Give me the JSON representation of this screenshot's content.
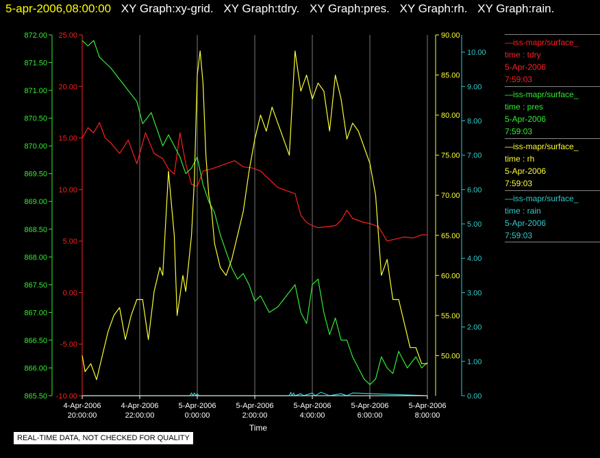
{
  "header": {
    "datetime": "5-apr-2006,08:00:00",
    "graphs": [
      "XY Graph:xy-grid.",
      "XY Graph:tdry.",
      "XY Graph:pres.",
      "XY Graph:rh.",
      "XY Graph:rain."
    ]
  },
  "legend": [
    {
      "source": "—iss-mapr/surface_",
      "field": "time : tdry",
      "date": "5-Apr-2006",
      "time": "7:59:03",
      "color": "#ff2020"
    },
    {
      "source": "—iss-mapr/surface_",
      "field": "time : pres",
      "date": "5-Apr-2006",
      "time": "7:59:03",
      "color": "#33ee33"
    },
    {
      "source": "—iss-mapr/surface_",
      "field": "time : rh",
      "date": "5-Apr-2006",
      "time": "7:59:03",
      "color": "#ffff33"
    },
    {
      "source": "—iss-mapr/surface_",
      "field": "time : rain",
      "date": "5-Apr-2006",
      "time": "7:59:03",
      "color": "#33cccc"
    }
  ],
  "quality_note": "REAL-TIME DATA, NOT CHECKED FOR QUALITY",
  "chart_data": {
    "type": "line",
    "xlabel": "Time",
    "x_ticks": [
      {
        "date": "4-Apr-2006",
        "time": "20:00:00",
        "h": 0
      },
      {
        "date": "4-Apr-2006",
        "time": "22:00:00",
        "h": 2
      },
      {
        "date": "5-Apr-2006",
        "time": "0:00:00",
        "h": 4
      },
      {
        "date": "5-Apr-2006",
        "time": "2:00:00",
        "h": 6
      },
      {
        "date": "5-Apr-2006",
        "time": "4:00:00",
        "h": 8
      },
      {
        "date": "5-Apr-2006",
        "time": "6:00:00",
        "h": 10
      },
      {
        "date": "5-Apr-2006",
        "time": "8:00:00",
        "h": 12
      }
    ],
    "xlim": [
      0,
      12
    ],
    "grid": "vertical lines at x ticks",
    "axes": {
      "pres": {
        "color": "#33ee33",
        "side": "left",
        "range": [
          865.5,
          872.0
        ],
        "ticks": [
          "865.50",
          "866.00",
          "866.50",
          "867.00",
          "867.50",
          "868.00",
          "868.50",
          "869.00",
          "869.50",
          "870.00",
          "870.50",
          "871.00",
          "871.50",
          "872.00"
        ]
      },
      "tdry": {
        "color": "#ff2020",
        "side": "left",
        "range": [
          -10,
          25
        ],
        "ticks": [
          "-10.00",
          "-5.00",
          "0.00",
          "5.00",
          "10.00",
          "15.00",
          "20.00",
          "25.00"
        ]
      },
      "rh": {
        "color": "#ffff33",
        "side": "right",
        "range": [
          45,
          90
        ],
        "ticks": [
          "50.00",
          "55.00",
          "60.00",
          "65.00",
          "70.00",
          "75.00",
          "80.00",
          "85.00",
          "90.00"
        ]
      },
      "rain": {
        "color": "#33cccc",
        "side": "right",
        "range": [
          0,
          10.5
        ],
        "ticks": [
          "0.00",
          "1.00",
          "2.00",
          "3.00",
          "4.00",
          "5.00",
          "6.00",
          "7.00",
          "8.00",
          "9.00",
          "10.00"
        ]
      }
    },
    "series": [
      {
        "name": "time : tdry",
        "axis": "tdry",
        "color": "#ff2020",
        "x": [
          0,
          0.2,
          0.4,
          0.6,
          0.8,
          1.0,
          1.3,
          1.6,
          1.9,
          2.2,
          2.5,
          2.8,
          3.0,
          3.2,
          3.4,
          3.6,
          3.8,
          4.0,
          4.2,
          4.5,
          4.8,
          5.0,
          5.3,
          5.6,
          5.9,
          6.2,
          6.5,
          6.8,
          7.0,
          7.2,
          7.4,
          7.6,
          7.8,
          8.0,
          8.2,
          8.5,
          8.8,
          9.0,
          9.2,
          9.4,
          9.6,
          9.8,
          10.0,
          10.3,
          10.6,
          10.9,
          11.2,
          11.5,
          11.8,
          12.0
        ],
        "y": [
          15,
          16,
          15.5,
          16.5,
          15,
          14.5,
          13.5,
          14.8,
          12.5,
          15.5,
          13.5,
          13,
          12,
          11.5,
          15.5,
          12.5,
          10.5,
          10.3,
          11.8,
          12,
          12.3,
          12.5,
          12.8,
          12.2,
          12.1,
          11.8,
          11,
          10.2,
          10,
          9.8,
          9.6,
          7.5,
          6.8,
          6.5,
          6.3,
          6.4,
          6.5,
          7.0,
          8.0,
          7.2,
          7.0,
          6.8,
          6.7,
          6.4,
          5.0,
          5.2,
          5.4,
          5.3,
          5.6,
          5.6
        ]
      },
      {
        "name": "time : pres",
        "axis": "pres",
        "color": "#33ee33",
        "x": [
          0,
          0.2,
          0.4,
          0.6,
          0.8,
          1.0,
          1.3,
          1.6,
          1.9,
          2.1,
          2.4,
          2.6,
          2.8,
          3.0,
          3.2,
          3.4,
          3.6,
          3.8,
          4.0,
          4.2,
          4.4,
          4.6,
          4.8,
          5.0,
          5.2,
          5.4,
          5.6,
          5.8,
          6.0,
          6.2,
          6.5,
          6.8,
          7.1,
          7.4,
          7.6,
          7.8,
          8.0,
          8.2,
          8.4,
          8.6,
          8.8,
          9.0,
          9.2,
          9.4,
          9.6,
          9.8,
          10.0,
          10.2,
          10.4,
          10.6,
          10.8,
          11.0,
          11.3,
          11.6,
          11.8,
          12.0
        ],
        "y": [
          871.9,
          871.8,
          871.9,
          871.6,
          871.5,
          871.4,
          871.2,
          871.0,
          870.8,
          870.4,
          870.6,
          870.3,
          870.0,
          870.2,
          870.0,
          869.8,
          869.5,
          869.6,
          869.8,
          869.3,
          869.0,
          868.8,
          868.4,
          868.1,
          867.8,
          867.6,
          867.7,
          867.5,
          867.2,
          867.3,
          867.0,
          867.1,
          867.3,
          867.5,
          867.0,
          866.8,
          867.5,
          867.6,
          867.0,
          866.6,
          866.9,
          866.5,
          866.5,
          866.2,
          866.0,
          865.8,
          865.7,
          865.8,
          866.2,
          866.0,
          865.9,
          866.3,
          866.0,
          866.2,
          866.0,
          866.1
        ]
      },
      {
        "name": "time : rh",
        "axis": "rh",
        "color": "#ffff33",
        "x": [
          0,
          0.1,
          0.3,
          0.5,
          0.7,
          0.9,
          1.1,
          1.3,
          1.5,
          1.7,
          1.9,
          2.1,
          2.3,
          2.5,
          2.7,
          2.8,
          3.0,
          3.2,
          3.3,
          3.5,
          3.6,
          3.8,
          3.9,
          4.0,
          4.1,
          4.2,
          4.3,
          4.4,
          4.5,
          4.6,
          4.8,
          5.0,
          5.2,
          5.4,
          5.6,
          5.8,
          6.0,
          6.2,
          6.4,
          6.6,
          6.8,
          7.0,
          7.2,
          7.4,
          7.6,
          7.8,
          8.0,
          8.2,
          8.4,
          8.6,
          8.8,
          9.0,
          9.2,
          9.4,
          9.6,
          9.8,
          10.0,
          10.2,
          10.4,
          10.6,
          10.8,
          11.0,
          11.2,
          11.4,
          11.6,
          11.8,
          12.0
        ],
        "y": [
          50,
          48,
          49,
          47,
          50,
          53,
          55,
          56,
          52,
          55,
          57,
          57,
          52,
          58,
          61,
          60,
          73,
          65,
          55,
          60,
          58,
          65,
          72,
          85,
          88,
          84,
          75,
          70,
          68,
          64,
          61,
          60,
          62,
          65,
          68,
          73,
          77,
          80,
          78,
          81,
          79,
          77,
          75,
          88,
          83,
          85,
          82,
          84,
          83,
          78,
          85,
          82,
          77,
          79,
          78,
          76,
          74,
          70,
          60,
          62,
          57,
          57,
          54,
          51,
          51,
          49,
          49
        ]
      },
      {
        "name": "time : rain",
        "axis": "rain",
        "color": "#33cccc",
        "x": [
          0,
          3.75,
          3.8,
          3.85,
          3.9,
          3.95,
          4.0,
          4.05,
          7.2,
          7.25,
          7.3,
          7.35,
          7.4,
          7.6,
          7.7,
          8.0,
          8.1,
          8.3,
          8.6,
          9.0,
          9.2,
          9.4,
          12.0
        ],
        "y": [
          0,
          0,
          0.08,
          0,
          0.08,
          0,
          0.06,
          0,
          0,
          0.1,
          0,
          0.08,
          0,
          0.06,
          0,
          0.08,
          0,
          0.1,
          0,
          0.06,
          0,
          0.08,
          0
        ]
      }
    ]
  }
}
